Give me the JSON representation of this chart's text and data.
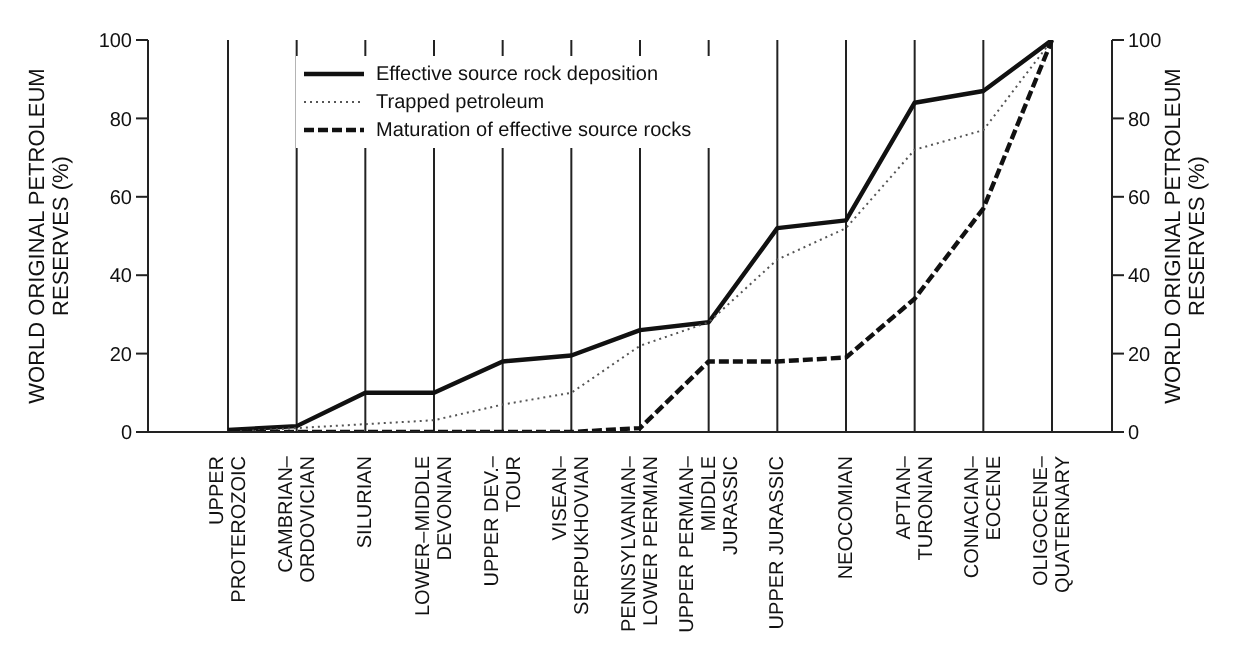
{
  "chart_data": {
    "type": "line",
    "categories": [
      "UPPER PROTEROZOIC",
      "CAMBRIAN–ORDOVICIAN",
      "SILURIAN",
      "LOWER–MIDDLE DEVONIAN",
      "UPPER DEV.–TOUR",
      "VISEAN–SERPUKHOVIAN",
      "PENNSYLVANIAN–LOWER PERMIAN",
      "UPPER PERMIAN–MIDDLE JURASSIC",
      "UPPER JURASSIC",
      "NEOCOMIAN",
      "APTIAN–TURONIAN",
      "CONIACIAN–EOCENE",
      "OLIGOCENE–QUATERNARY"
    ],
    "series": [
      {
        "name": "Effective source rock deposition",
        "color": "#111111",
        "line_style": "solid",
        "values": [
          0.5,
          1.5,
          10,
          10,
          18,
          19.5,
          26,
          28,
          52,
          54,
          84,
          87,
          100
        ]
      },
      {
        "name": "Trapped petroleum",
        "color": "#555555",
        "line_style": "dotted",
        "values": [
          0,
          1,
          2,
          3,
          7,
          10,
          22,
          28,
          44,
          52,
          72,
          77,
          100
        ]
      },
      {
        "name": "Maturation of effective source rocks",
        "color": "#111111",
        "line_style": "dashed",
        "values": [
          0,
          0,
          0,
          0,
          0,
          0,
          1,
          18,
          18,
          19,
          34,
          57,
          100
        ]
      }
    ],
    "ylabel": "WORLD ORIGINAL PETROLEUM RESERVES (%)",
    "y2label": "WORLD ORIGINAL PETROLEUM RESERVES (%)",
    "ylim": [
      0,
      100
    ],
    "yticks": [
      0,
      20,
      40,
      60,
      80,
      100
    ],
    "y2lim": [
      0,
      100
    ],
    "y2ticks": [
      0,
      20,
      40,
      60,
      80,
      100
    ],
    "grid": "x",
    "legend": "top left",
    "marker": "none"
  }
}
